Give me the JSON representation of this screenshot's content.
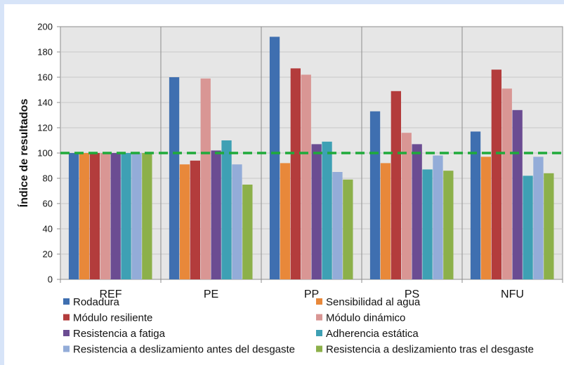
{
  "chart_data": {
    "type": "bar",
    "title": "",
    "xlabel": "",
    "ylabel": "Índice de resultados",
    "ylim": [
      0,
      200
    ],
    "yticks": [
      0,
      20,
      40,
      60,
      80,
      100,
      120,
      140,
      160,
      180,
      200
    ],
    "grid": true,
    "legend_position": "bottom",
    "reference_line": {
      "value": 100,
      "style": "dashed",
      "color": "#1faa3a"
    },
    "categories": [
      "REF",
      "PE",
      "PP",
      "PS",
      "NFU"
    ],
    "series": [
      {
        "name": "Rodadura",
        "color": "#3f6fb0",
        "values": [
          100,
          160,
          192,
          133,
          117
        ]
      },
      {
        "name": "Sensibilidad al agua",
        "color": "#e8883a",
        "values": [
          100,
          91,
          92,
          92,
          97
        ]
      },
      {
        "name": "Módulo resiliente",
        "color": "#b33c3c",
        "values": [
          100,
          94,
          167,
          149,
          166
        ]
      },
      {
        "name": "Módulo dinámico",
        "color": "#d99694",
        "values": [
          100,
          159,
          162,
          116,
          151
        ]
      },
      {
        "name": "Resistencia a fatiga",
        "color": "#6b4c92",
        "values": [
          100,
          102,
          107,
          107,
          134
        ]
      },
      {
        "name": "Adherencia estática",
        "color": "#3ea0b4",
        "values": [
          100,
          110,
          109,
          87,
          82
        ]
      },
      {
        "name": "Resistencia a deslizamiento antes del desgaste",
        "color": "#93acd8",
        "values": [
          100,
          91,
          85,
          98,
          97
        ]
      },
      {
        "name": "Resistencia a deslizamiento tras el desgaste",
        "color": "#8cb04a",
        "values": [
          100,
          75,
          79,
          86,
          84
        ]
      }
    ]
  }
}
